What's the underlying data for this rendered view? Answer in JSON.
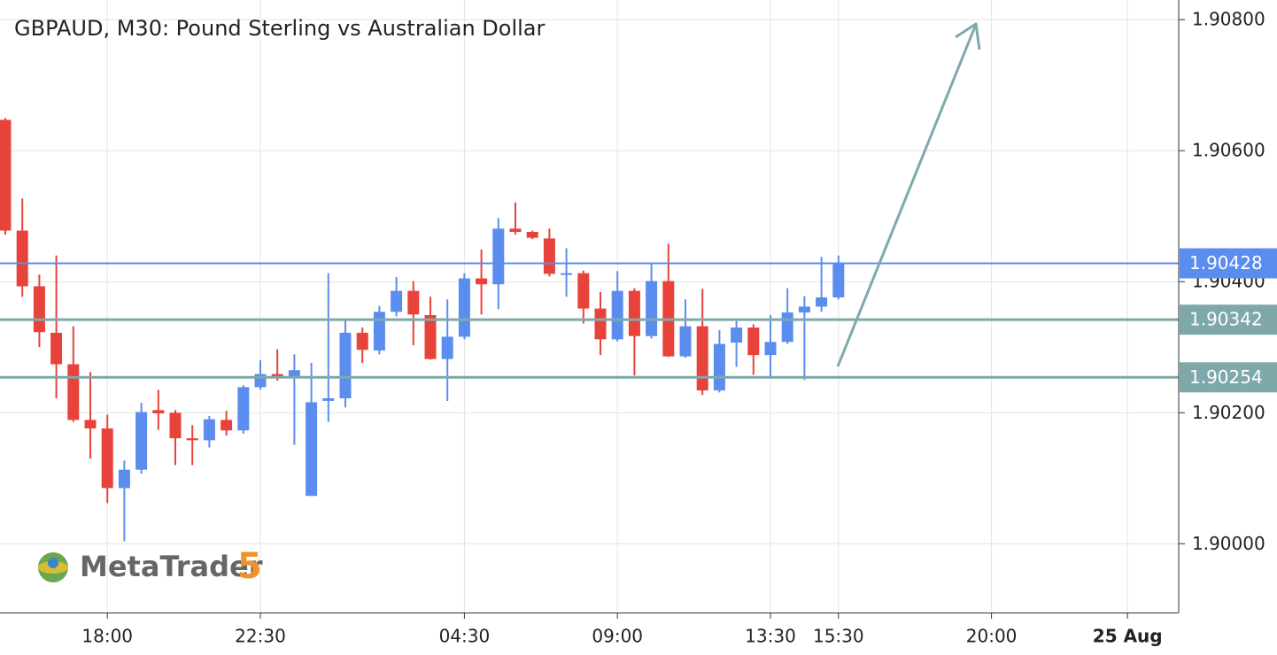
{
  "chart_data": {
    "type": "candlestick",
    "title": "GBPAUD, M30: Pound Sterling vs Australian Dollar",
    "watermark": "MetaTrader",
    "watermark_version": "5",
    "up_color": "#5b8def",
    "down_color": "#e8433a",
    "grid": true,
    "categories": [
      null,
      null,
      null,
      null,
      null,
      null,
      "18:00",
      null,
      null,
      null,
      null,
      null,
      null,
      null,
      null,
      "22:30",
      null,
      null,
      null,
      null,
      null,
      null,
      null,
      null,
      null,
      null,
      null,
      "04:30",
      null,
      null,
      null,
      null,
      null,
      null,
      null,
      null,
      "09:00",
      null,
      null,
      null,
      null,
      null,
      null,
      null,
      null,
      "13:30",
      null,
      null,
      null,
      "15:30",
      null,
      null,
      null,
      null,
      null,
      null,
      null,
      null,
      "20:00",
      null,
      null,
      null,
      null,
      null,
      null,
      null,
      "25 Aug",
      null,
      null
    ],
    "open": [
      1.90647,
      1.90478,
      1.90393,
      1.90322,
      1.90274,
      1.90189,
      1.90176,
      1.90085,
      1.90113,
      1.90204,
      1.902,
      1.90161,
      1.90158,
      1.90189,
      1.90173,
      1.90239,
      1.90259,
      1.90255,
      1.90073,
      1.90218,
      1.90222,
      1.90322,
      1.90295,
      1.90354,
      1.90386,
      1.90349,
      1.90282,
      1.90316,
      1.90405,
      1.90396,
      1.90481,
      1.90476,
      1.90466,
      1.90412,
      1.90413,
      1.90359,
      1.90312,
      1.90386,
      1.90317,
      1.90401,
      1.90286,
      1.90332,
      1.90234,
      1.90307,
      1.9033,
      1.90288,
      1.90308,
      1.90353,
      1.90362,
      1.90376,
      null,
      null,
      null,
      null,
      null,
      null,
      null,
      null,
      null,
      null,
      null,
      null,
      null,
      null,
      null,
      null,
      null,
      null,
      null
    ],
    "high": [
      1.9065,
      1.90527,
      1.90411,
      1.9044,
      1.90332,
      1.90262,
      1.90197,
      1.90127,
      1.90215,
      1.90235,
      1.90204,
      1.90181,
      1.90195,
      1.90203,
      1.90242,
      1.9028,
      1.90297,
      1.90289,
      1.90276,
      1.90413,
      1.90343,
      1.9033,
      1.90363,
      1.90407,
      1.90401,
      1.90377,
      1.90373,
      1.90413,
      1.90449,
      1.90497,
      1.90521,
      1.90478,
      1.90481,
      1.90451,
      1.90417,
      1.90384,
      1.90416,
      1.9039,
      1.90428,
      1.90458,
      1.90373,
      1.90389,
      1.90326,
      1.9034,
      1.90335,
      1.90349,
      1.9039,
      1.90378,
      1.90438,
      1.9044,
      null,
      null,
      null,
      null,
      null,
      null,
      null,
      null,
      null,
      null,
      null,
      null,
      null,
      null,
      null,
      null,
      null,
      null,
      null
    ],
    "low": [
      1.90472,
      1.90377,
      1.903,
      1.90222,
      1.90186,
      1.9013,
      1.90062,
      1.90004,
      1.90107,
      1.90174,
      1.9012,
      1.9012,
      1.90147,
      1.90165,
      1.90168,
      1.90235,
      1.90249,
      1.90151,
      1.90073,
      1.90186,
      1.90208,
      1.90276,
      1.90289,
      1.90347,
      1.90303,
      1.90281,
      1.90218,
      1.90312,
      1.9035,
      1.90358,
      1.90472,
      1.90465,
      1.90408,
      1.90377,
      1.90336,
      1.90288,
      1.90309,
      1.90257,
      1.90313,
      1.90285,
      1.90284,
      1.90227,
      1.90231,
      1.9027,
      1.90258,
      1.90255,
      1.90305,
      1.9025,
      1.90354,
      1.90373,
      null,
      null,
      null,
      null,
      null,
      null,
      null,
      null,
      null,
      null,
      null,
      null,
      null,
      null,
      null,
      null,
      null,
      null,
      null
    ],
    "close": [
      1.90478,
      1.90393,
      1.90323,
      1.90274,
      1.90189,
      1.90176,
      1.90085,
      1.90113,
      1.90201,
      1.90199,
      1.90161,
      1.90158,
      1.9019,
      1.90173,
      1.90239,
      1.90259,
      1.90255,
      1.90265,
      1.90216,
      1.90222,
      1.90322,
      1.90296,
      1.90354,
      1.90386,
      1.9035,
      1.90282,
      1.90316,
      1.90405,
      1.90396,
      1.90481,
      1.90476,
      1.90467,
      1.90412,
      1.90413,
      1.90359,
      1.90312,
      1.90386,
      1.90317,
      1.90401,
      1.90286,
      1.90332,
      1.90234,
      1.90305,
      1.9033,
      1.90288,
      1.90308,
      1.90353,
      1.90362,
      1.90376,
      1.90428,
      null,
      null,
      null,
      null,
      null,
      null,
      null,
      null,
      null,
      null,
      null,
      null,
      null,
      null,
      null,
      null,
      null,
      null,
      null
    ],
    "ylim": [
      1.89895,
      1.9083
    ],
    "yticks": [
      {
        "value": 1.908,
        "label": "1.90800"
      },
      {
        "value": 1.906,
        "label": "1.90600"
      },
      {
        "value": 1.904,
        "label": "1.90400"
      },
      {
        "value": 1.902,
        "label": "1.90200"
      },
      {
        "value": 1.9,
        "label": "1.90000"
      }
    ],
    "price_lines": [
      {
        "value": 1.90428,
        "label": "1.90428",
        "color": "#5b8def",
        "width": 2
      },
      {
        "value": 1.90342,
        "label": "1.90342",
        "color": "#7fa8ab",
        "width": 3
      },
      {
        "value": 1.90254,
        "label": "1.90254",
        "color": "#7fa8ab",
        "width": 3
      }
    ]
  }
}
